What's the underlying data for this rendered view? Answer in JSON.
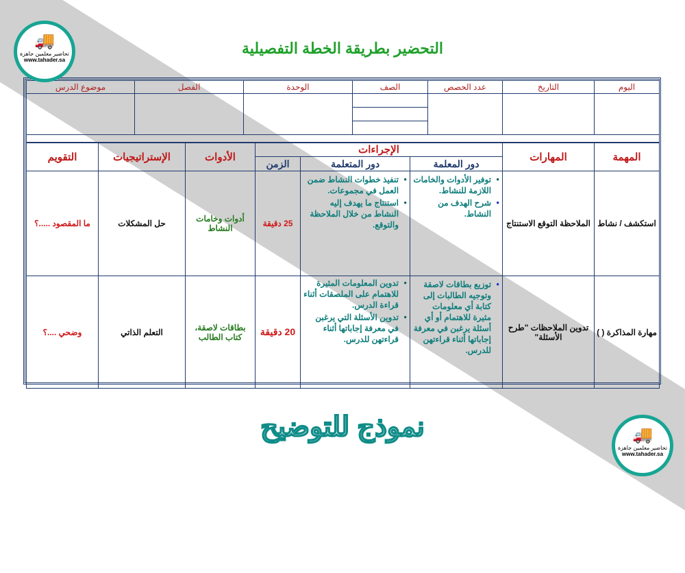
{
  "title": "التحضير بطريقة الخطة التفصيلية",
  "logo": {
    "text_ar": "تحاضير معلمين جاهزة",
    "url": "www.tahader.sa"
  },
  "watermark": "نموذج للتوضيح",
  "info_headers": [
    "اليوم",
    "التاريخ",
    "عدد الحصص",
    "الصف",
    "الوحدة",
    "الفصل",
    "موضوع الدرس"
  ],
  "plan_headers": {
    "task": "المهمة",
    "skills": "المهارات",
    "procedures": "الإجراءات",
    "teacher_role": "دور المعلمة",
    "learner_role": "دور المتعلمة",
    "time": "الزمن",
    "tools": "الأدوات",
    "strategies": "الإستراتيجيات",
    "evaluation": "التقويم"
  },
  "rows": [
    {
      "task": "استكشف / نشاط",
      "skills": "الملاحظة التوقع الاستنتاج",
      "teacher": [
        "توفير الأدوات والخامات اللازمة للنشاط.",
        "شرح الهدف من النشاط."
      ],
      "learner": [
        "تنفيذ خطوات النشاط ضمن العمل في مجموعات.",
        "استنتاج ما يهدف إليه النشاط من خلال الملاحظة والتوقع."
      ],
      "time": "25 دقيقة",
      "tools": "أدوات وخامات النشاط",
      "strategy": "حل المشكلات",
      "evaluation": "ما المقصود .....؟"
    },
    {
      "task": "مهارة المذاكرة ( )",
      "skills": "تدوين الملاحظات \"طرح الأسئلة\"",
      "teacher": [
        "توزيع بطاقات لاصقة وتوجيه الطالبات إلى كتابة أي معلومات مثيرة للاهتمام أو أي أسئلة يرغبن في معرفة إجاباتها أثناء قراءتهن للدرس."
      ],
      "learner": [
        "تدوين المعلومات المثيرة للاهتمام على الملصقات أثناء قراءة الدرس.",
        "تدوين الأسئلة التي يرغبن في معرفة إجاباتها أثناء قراءتهن للدرس."
      ],
      "time": "20 دقيقة",
      "tools": "بطاقات لاصقة، كتاب الطالب",
      "strategy": "التعلم الذاتي",
      "evaluation": "وضحي ....؟"
    }
  ]
}
